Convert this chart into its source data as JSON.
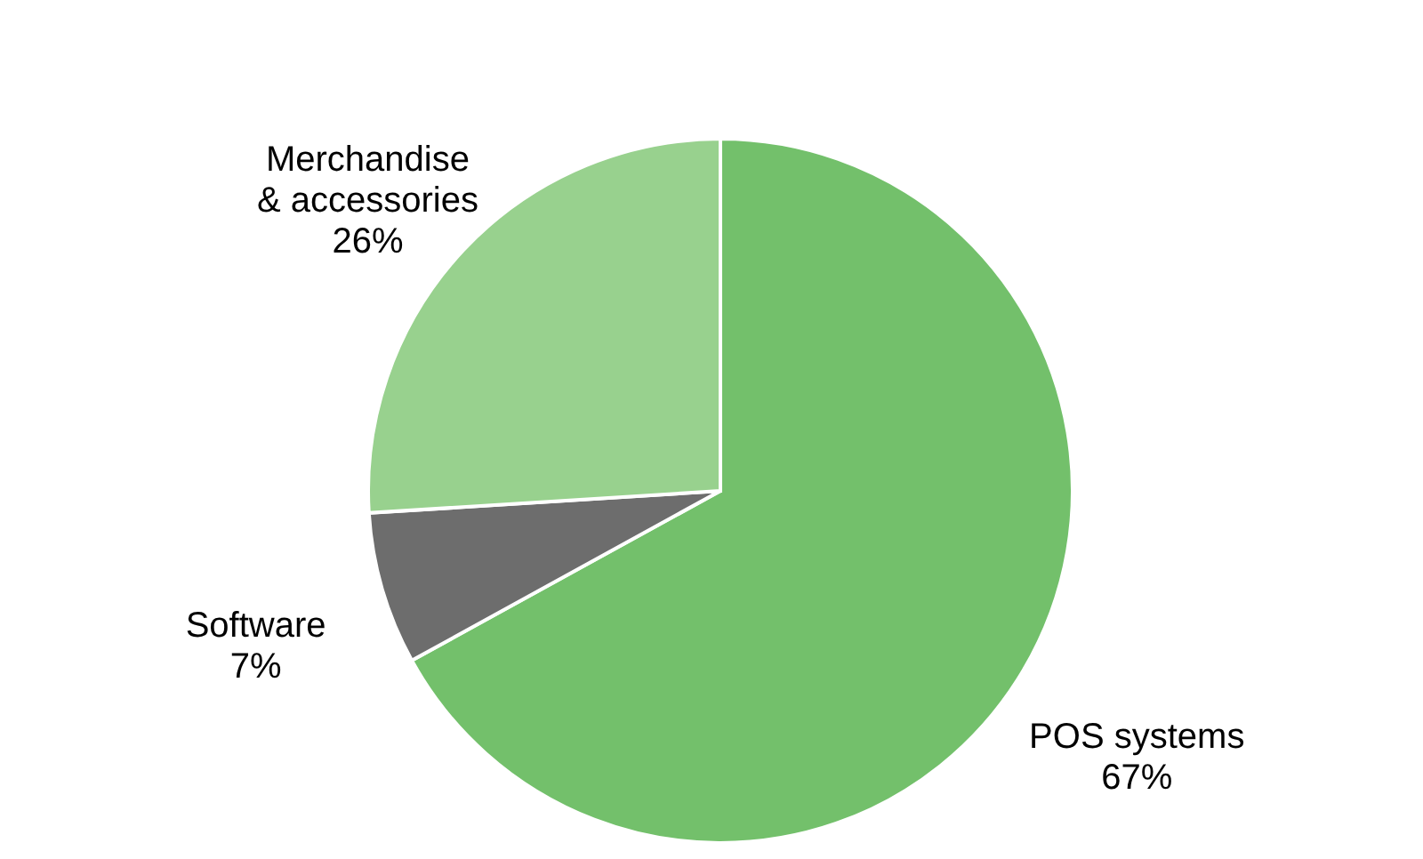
{
  "chart_data": {
    "type": "pie",
    "categories": [
      "POS systems",
      "Software",
      "Merchandise & accessories"
    ],
    "values": [
      67,
      7,
      26
    ],
    "colors": [
      "#73c06b",
      "#6d6d6d",
      "#98d18e"
    ],
    "value_labels": [
      "67%",
      "7%",
      "26%"
    ]
  }
}
